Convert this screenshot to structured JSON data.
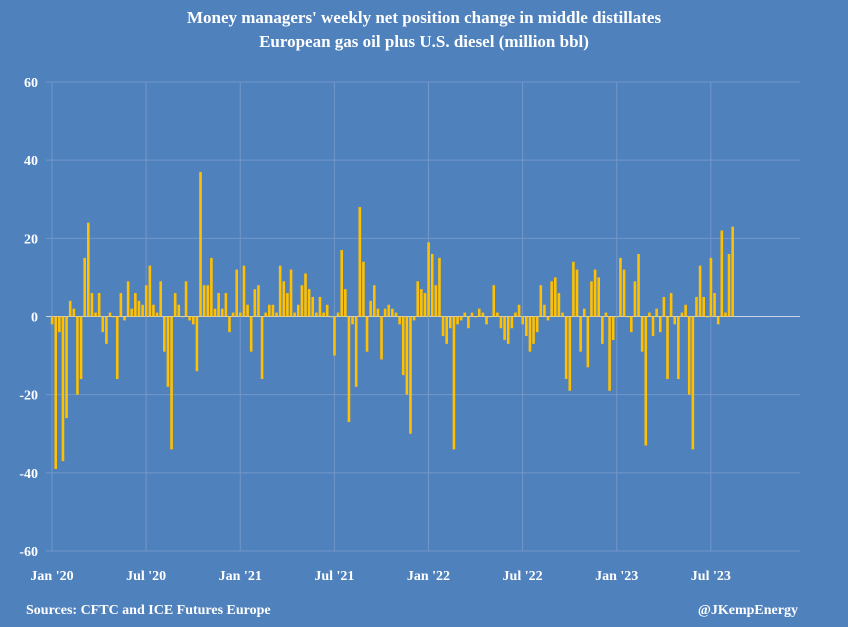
{
  "chart_data": {
    "type": "bar",
    "title": "Money managers' weekly net position change in middle distillates",
    "subtitle": "European gas oil plus U.S. diesel (million bbl)",
    "xlabel": "",
    "ylabel": "",
    "ylim": [
      -60,
      60
    ],
    "yticks": [
      60,
      40,
      20,
      0,
      -20,
      -40,
      -60
    ],
    "xticks": [
      "Jan '20",
      "Jul '20",
      "Jan '21",
      "Jul '21",
      "Jan '22",
      "Jul '22",
      "Jan '23",
      "Jul '23"
    ],
    "x_frequency": "weekly, starting Jan 2020",
    "grid": true,
    "bar_color": "#ffc000",
    "background_color": "#4f81bd",
    "values": [
      -2,
      -39,
      -4,
      -37,
      -26,
      4,
      2,
      -20,
      -16,
      15,
      24,
      6,
      1,
      6,
      -4,
      -7,
      1,
      0,
      -16,
      6,
      -1,
      9,
      2,
      6,
      4,
      3,
      8,
      13,
      3,
      1,
      9,
      -9,
      -18,
      -34,
      6,
      3,
      0,
      9,
      -1,
      -2,
      -14,
      37,
      8,
      8,
      15,
      2,
      6,
      2,
      6,
      -4,
      1,
      12,
      1,
      13,
      3,
      -9,
      7,
      8,
      -16,
      1,
      3,
      3,
      1,
      13,
      9,
      6,
      12,
      1,
      3,
      8,
      11,
      7,
      5,
      1,
      5,
      1,
      3,
      0,
      -10,
      1,
      17,
      7,
      -27,
      -2,
      -18,
      28,
      14,
      -9,
      4,
      8,
      2,
      -11,
      2,
      3,
      2,
      1,
      -2,
      -15,
      -20,
      -30,
      -1,
      9,
      7,
      6,
      19,
      16,
      8,
      15,
      -5,
      -7,
      -3,
      -34,
      -2,
      -1,
      1,
      -3,
      1,
      0,
      2,
      1,
      -2,
      0,
      8,
      1,
      -3,
      -6,
      -7,
      -3,
      1,
      3,
      -2,
      -5,
      -9,
      -7,
      -4,
      8,
      3,
      -1,
      9,
      10,
      6,
      1,
      -16,
      -19,
      14,
      12,
      -9,
      2,
      -13,
      9,
      12,
      10,
      -7,
      1,
      -19,
      -6,
      0,
      15,
      12,
      0,
      -4,
      9,
      16,
      -9,
      -33,
      1,
      -5,
      2,
      -4,
      5,
      -16,
      6,
      -2,
      -16,
      1,
      3,
      -20,
      -34,
      5,
      13,
      5,
      0,
      15,
      6,
      -2,
      22,
      1,
      16,
      23
    ]
  },
  "footer": {
    "source": "Sources: CFTC and ICE Futures Europe",
    "credit": "@JKempEnergy"
  }
}
